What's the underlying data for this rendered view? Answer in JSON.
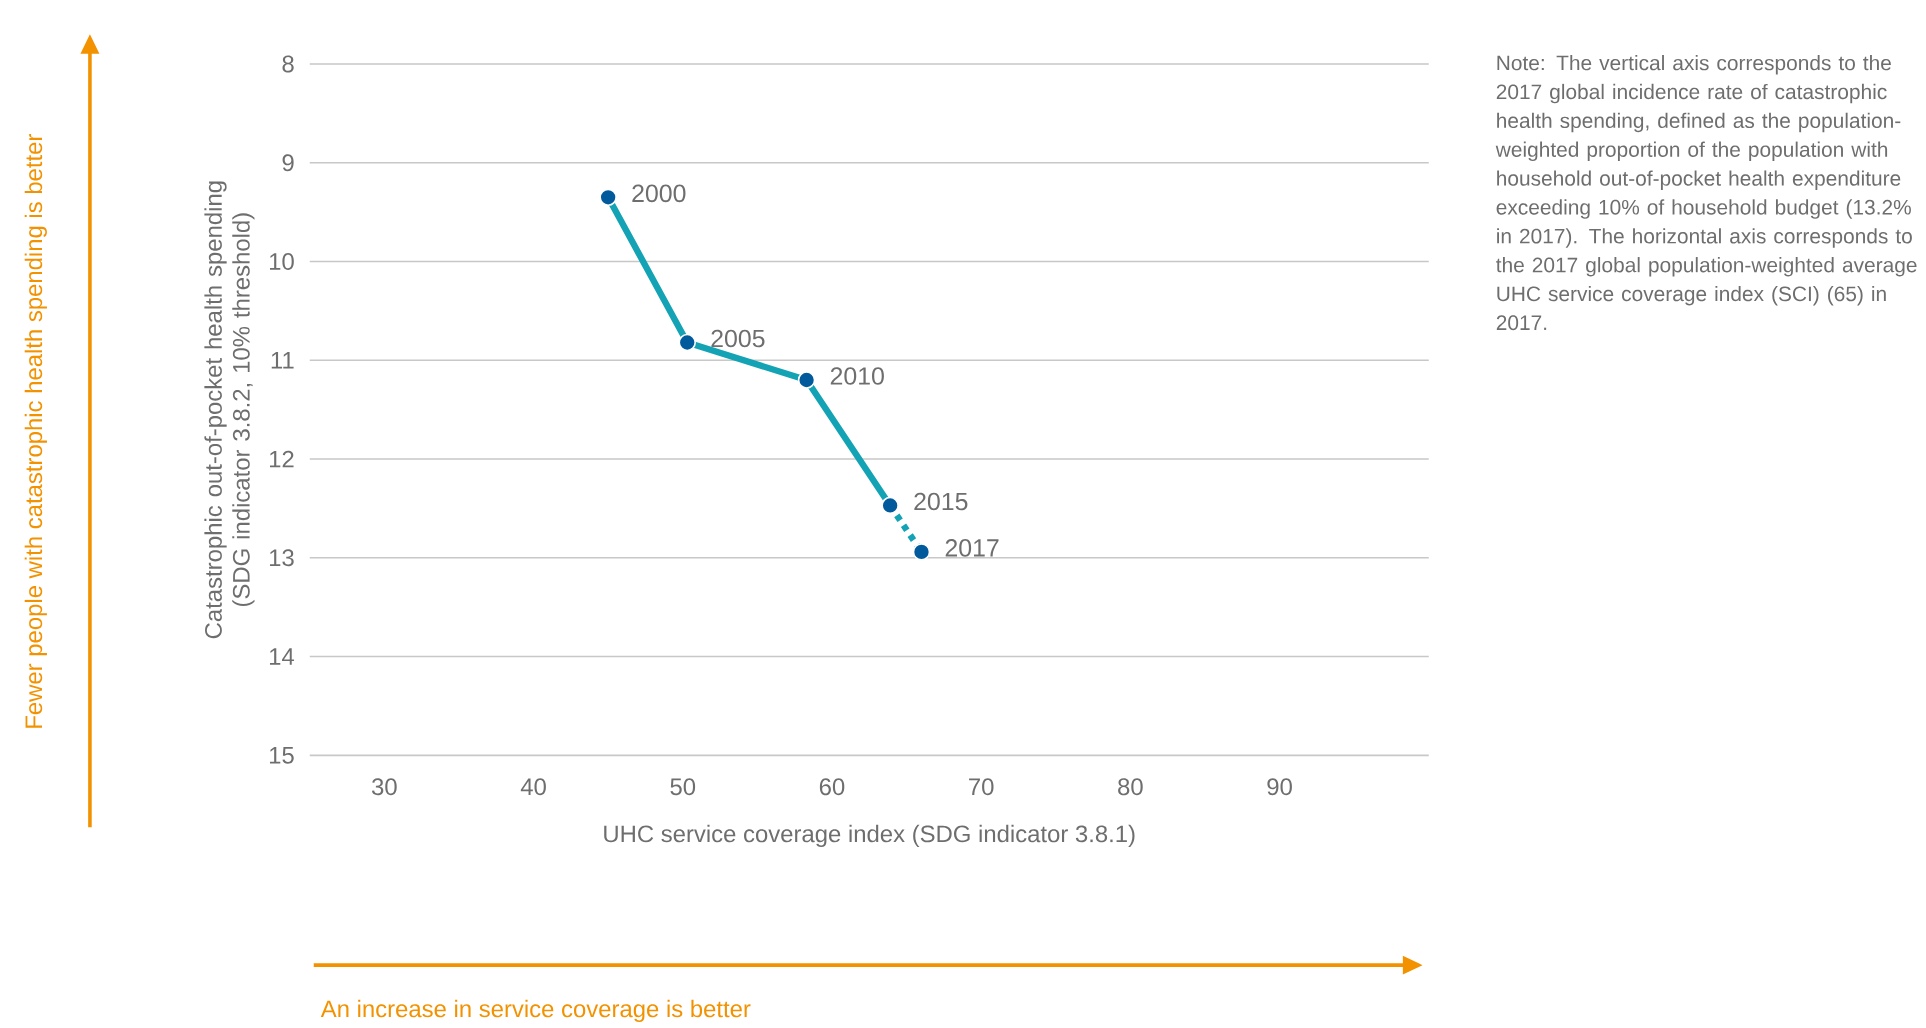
{
  "chart_data": {
    "type": "line",
    "xlabel": "UHC service coverage index (SDG indicator 3.8.1)",
    "ylabel": "Catastrophic out-of-pocket health spending (SDG indicator 3.8.2, 10% threshold)",
    "series": [
      {
        "color": "#14a3b4",
        "values": [
          9.35,
          10.82,
          11.2,
          12.47
        ],
        "x": [
          45,
          50.3,
          58.3,
          63.9
        ],
        "line_style": "solid"
      },
      {
        "color": "#14a3b4",
        "values": [
          12.47,
          12.94
        ],
        "x": [
          63.9,
          66
        ],
        "line_style": "dashed"
      }
    ],
    "marker": "circle",
    "xlim": [
      25,
      100
    ],
    "xticks": [
      30,
      40,
      50,
      60,
      70,
      80,
      90
    ],
    "ylim": [
      15,
      8
    ],
    "yticks": [
      8,
      9,
      10,
      11,
      12,
      13,
      14,
      15
    ],
    "grid": "y",
    "annotations": [
      {
        "text": "2000",
        "x": 45,
        "y": 9.35
      },
      {
        "text": "2005",
        "x": 50.3,
        "y": 10.82
      },
      {
        "text": "2010",
        "x": 58.3,
        "y": 11.2
      },
      {
        "text": "2015",
        "x": 63.9,
        "y": 12.47
      },
      {
        "text": "2017",
        "x": 66,
        "y": 12.94
      },
      "Note: The vertical axis corresponds to the 2017 global incidence rate of catastrophic health spending, defined as the population-weighted proportion of the population with household out-of-pocket health expenditure exceeding 10% of household budget (13.2% in 2017). The horizontal axis corresponds to the 2017 global population-weighted average UHC service coverage index (SCI) (65) in 2017.",
      "Fewer people with catastrophic health spending is better",
      "An increase in service coverage is better"
    ]
  }
}
